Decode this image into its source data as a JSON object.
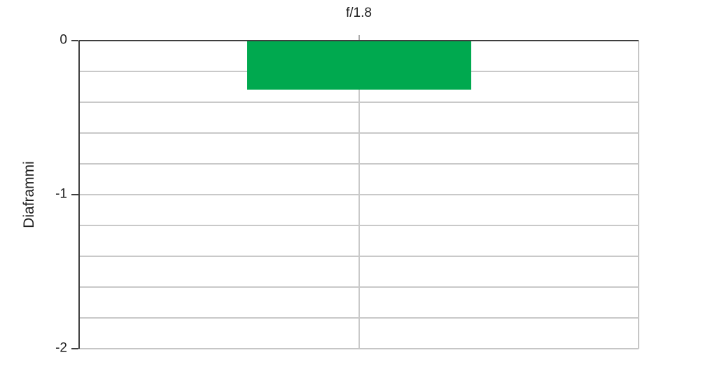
{
  "chart_data": {
    "type": "bar",
    "categories": [
      "f/1.8"
    ],
    "values": [
      -0.32
    ],
    "title": "",
    "xlabel": "",
    "ylabel": "Diaframmi",
    "ylim": [
      -2,
      0
    ],
    "yticks": [
      0,
      -1,
      -2
    ],
    "ytick_labels": [
      "0",
      "-1",
      "-2"
    ],
    "grid_step": 0.2,
    "grid": true,
    "legend": "none",
    "bar_color": "#00a94f"
  },
  "colors": {
    "bar": "#00a94f",
    "axis": "#3f3f3f",
    "gridline": "#c9c9c9",
    "text": "#1f1f1f",
    "background": "#ffffff"
  }
}
